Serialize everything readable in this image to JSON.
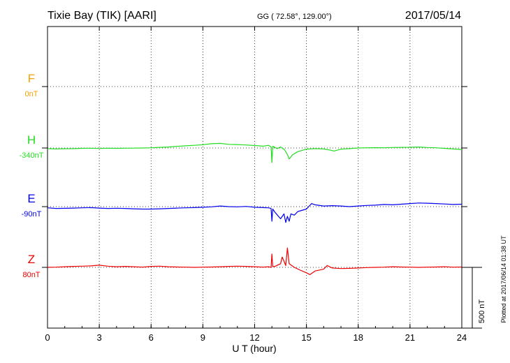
{
  "header": {
    "station": "Tixie Bay (TIK)  [AARI]",
    "coords": "GG ( 72.58°, 129.00°)",
    "date": "2017/05/14"
  },
  "chart_data": {
    "type": "line",
    "title": "Tixie Bay (TIK)  [AARI]",
    "xlabel": "U T (hour)",
    "xlim": [
      0,
      24
    ],
    "xticks": [
      "0",
      "3",
      "6",
      "9",
      "12",
      "15",
      "18",
      "21",
      "24"
    ],
    "grid": true,
    "scale_bar_label": "500 nT",
    "scale_bar_nT": 500,
    "footer_note": "Plotted at 2017/06/14 01:38 UT",
    "series": [
      {
        "name": "F",
        "baseline": "0nT",
        "color": "#f5a000",
        "values": []
      },
      {
        "name": "H",
        "baseline": "-340nT",
        "color": "#22dd22",
        "x": [
          0,
          0.5,
          1,
          1.5,
          2,
          2.5,
          3,
          3.5,
          4,
          4.5,
          5,
          5.5,
          6,
          6.5,
          7,
          7.5,
          8,
          8.5,
          9,
          9.5,
          10,
          10.5,
          11,
          11.5,
          12,
          12.5,
          12.8,
          12.95,
          13.0,
          13.05,
          13.1,
          13.3,
          13.5,
          13.7,
          13.8,
          13.9,
          14.0,
          14.2,
          14.5,
          15.0,
          15.5,
          16.0,
          16.3,
          16.6,
          17,
          17.5,
          18,
          18.5,
          19,
          19.5,
          20,
          20.5,
          21,
          21.5,
          22,
          22.5,
          23,
          23.5,
          24
        ],
        "values": [
          -5,
          -8,
          -6,
          -5,
          -3,
          -2,
          -4,
          -2,
          -3,
          -2,
          -1,
          0,
          2,
          5,
          8,
          14,
          18,
          22,
          27,
          35,
          38,
          30,
          28,
          25,
          20,
          15,
          22,
          10,
          -120,
          15,
          10,
          -5,
          8,
          -10,
          -30,
          -55,
          -90,
          -55,
          -30,
          -10,
          -5,
          -8,
          -15,
          -25,
          -10,
          -5,
          0,
          2,
          3,
          2,
          4,
          5,
          6,
          8,
          4,
          2,
          -3,
          -8,
          -12
        ]
      },
      {
        "name": "E",
        "baseline": "-90nT",
        "color": "#0000ee",
        "x": [
          0,
          0.5,
          1,
          1.5,
          2,
          2.5,
          3,
          3.5,
          4,
          4.5,
          5,
          5.5,
          6,
          6.5,
          7,
          7.5,
          8,
          8.5,
          9,
          9.5,
          10,
          10.5,
          11,
          11.5,
          12,
          12.5,
          12.8,
          12.95,
          13.0,
          13.05,
          13.2,
          13.5,
          13.7,
          13.8,
          13.9,
          14.0,
          14.1,
          14.3,
          14.5,
          15.0,
          15.3,
          15.5,
          16.0,
          16.5,
          17,
          17.5,
          18,
          18.5,
          19,
          19.5,
          20,
          20.5,
          21,
          21.5,
          22,
          22.5,
          23,
          23.5,
          24
        ],
        "values": [
          -10,
          -15,
          -14,
          -12,
          -10,
          -8,
          -12,
          -15,
          -13,
          -15,
          -18,
          -20,
          -20,
          -18,
          -15,
          -12,
          -10,
          -8,
          -5,
          -2,
          5,
          0,
          -2,
          2,
          -5,
          -8,
          -10,
          -15,
          -120,
          -20,
          -50,
          -100,
          -60,
          -130,
          -80,
          -120,
          -60,
          -70,
          -40,
          -20,
          25,
          15,
          5,
          8,
          5,
          0,
          5,
          10,
          12,
          18,
          15,
          20,
          25,
          30,
          28,
          25,
          22,
          18,
          20
        ]
      },
      {
        "name": "Z",
        "baseline": "80nT",
        "color": "#ee0000",
        "x": [
          0,
          0.5,
          1,
          1.5,
          2,
          2.5,
          3,
          3.5,
          4,
          4.5,
          5,
          5.5,
          6,
          6.5,
          7,
          7.5,
          8,
          8.5,
          9,
          9.5,
          10,
          10.5,
          11,
          11.5,
          12,
          12.5,
          12.8,
          12.95,
          13.0,
          13.05,
          13.2,
          13.5,
          13.6,
          13.8,
          13.9,
          14.0,
          14.3,
          14.6,
          15.0,
          15.2,
          15.5,
          16.0,
          16.2,
          16.5,
          17,
          17.5,
          18,
          18.5,
          19,
          19.5,
          20,
          20.5,
          21,
          21.5,
          22,
          22.5,
          23,
          23.5,
          24
        ],
        "values": [
          0,
          2,
          5,
          8,
          10,
          12,
          18,
          10,
          5,
          8,
          5,
          2,
          8,
          10,
          5,
          3,
          2,
          0,
          2,
          3,
          5,
          8,
          10,
          8,
          5,
          2,
          5,
          0,
          110,
          5,
          10,
          30,
          85,
          15,
          160,
          30,
          0,
          -20,
          -45,
          -60,
          -30,
          -15,
          15,
          -5,
          -10,
          -8,
          -5,
          -2,
          0,
          2,
          5,
          3,
          2,
          0,
          2,
          3,
          5,
          2,
          3
        ]
      }
    ]
  }
}
